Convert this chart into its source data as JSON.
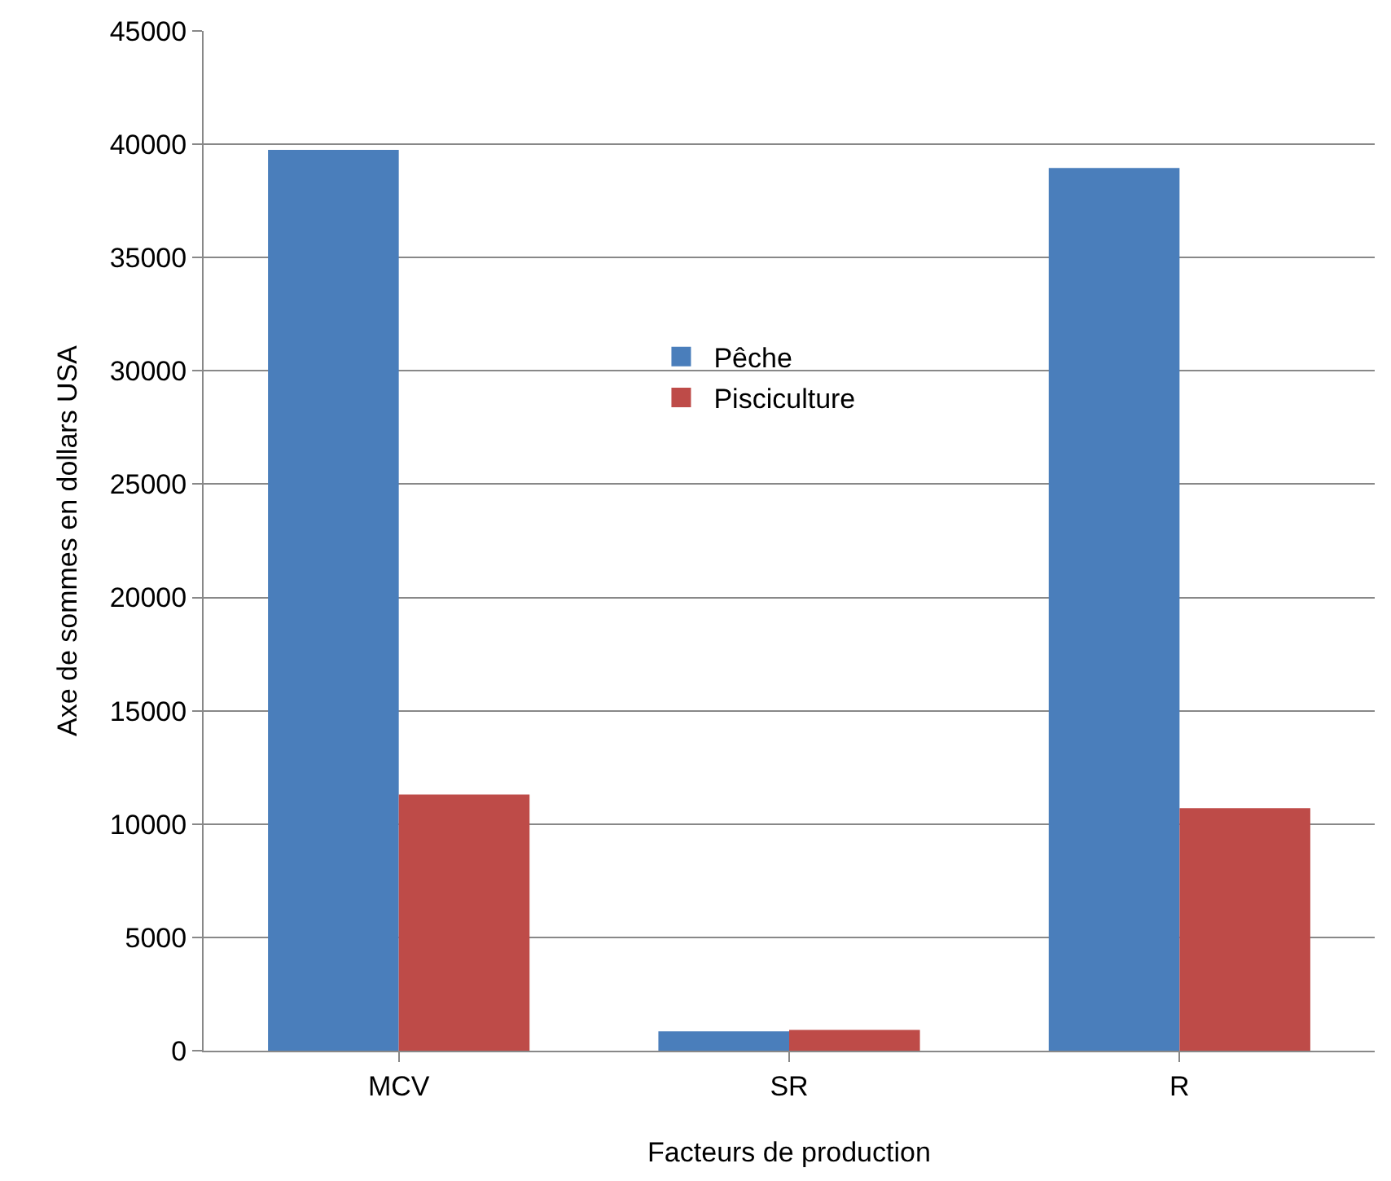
{
  "chart_data": {
    "type": "bar",
    "xlabel": "Facteurs de production",
    "ylabel": "Axe de sommes en dollars USA",
    "categories": [
      "MCV",
      "SR",
      "R"
    ],
    "series": [
      {
        "name": "Pêche",
        "color": "#4a7ebb",
        "values": [
          39750,
          850,
          38950
        ]
      },
      {
        "name": "Pisciculture",
        "color": "#be4b48",
        "values": [
          11300,
          920,
          10700
        ]
      }
    ],
    "ylim": [
      0,
      45000
    ],
    "yticks": [
      0,
      5000,
      10000,
      15000,
      20000,
      25000,
      30000,
      35000,
      40000,
      45000
    ],
    "grid": "y",
    "legend": "center"
  }
}
